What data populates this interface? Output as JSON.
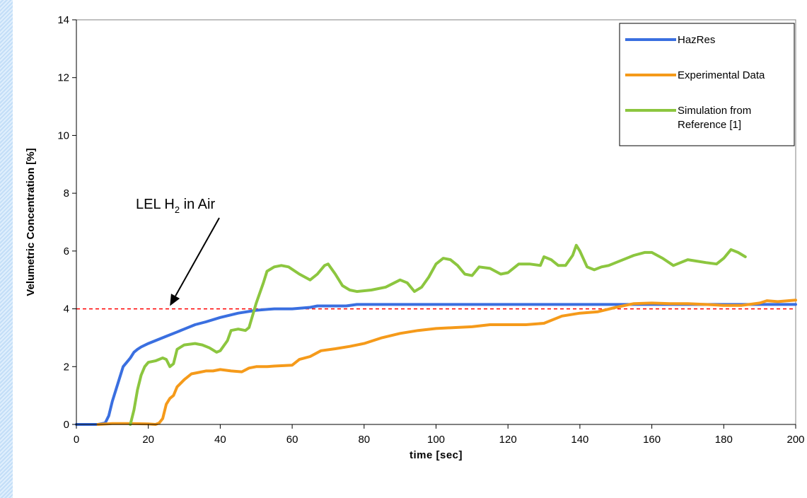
{
  "chart_data": {
    "type": "line",
    "title": "",
    "xlabel": "time [sec]",
    "ylabel": "Velumetric Concentration [%]",
    "xlim": [
      0,
      200
    ],
    "ylim": [
      0,
      14
    ],
    "xticks": [
      0,
      20,
      40,
      60,
      80,
      100,
      120,
      140,
      160,
      180,
      200
    ],
    "yticks": [
      0,
      2,
      4,
      6,
      8,
      10,
      12,
      14
    ],
    "grid": false,
    "legend_position": "top-right",
    "reference_line": {
      "y": 4,
      "color": "#ff0000",
      "style": "dashed"
    },
    "annotation": {
      "text_prefix": "LEL H",
      "subscript": "2",
      "text_suffix": " in Air",
      "arrow_to": [
        26,
        4.1
      ]
    },
    "series": [
      {
        "name": "HazRes",
        "color": "#3a6fe0",
        "x": [
          0,
          6,
          8,
          9,
          10,
          11,
          12,
          13,
          14,
          15,
          16,
          17,
          18,
          20,
          22,
          25,
          28,
          30,
          33,
          36,
          40,
          45,
          50,
          55,
          60,
          65,
          67,
          70,
          75,
          78,
          90,
          100,
          120,
          140,
          160,
          180,
          200
        ],
        "y": [
          0,
          0,
          0.05,
          0.3,
          0.8,
          1.2,
          1.6,
          2.0,
          2.15,
          2.3,
          2.5,
          2.6,
          2.68,
          2.8,
          2.9,
          3.05,
          3.2,
          3.3,
          3.45,
          3.55,
          3.7,
          3.85,
          3.95,
          4.0,
          4.0,
          4.05,
          4.1,
          4.1,
          4.1,
          4.15,
          4.15,
          4.15,
          4.15,
          4.15,
          4.15,
          4.15,
          4.15
        ]
      },
      {
        "name": "Experimental Data",
        "color": "#f59a1a",
        "x": [
          6,
          10,
          15,
          20,
          22,
          23,
          24,
          25,
          26,
          27,
          28,
          30,
          32,
          34,
          36,
          38,
          40,
          43,
          46,
          48,
          50,
          53,
          55,
          60,
          62,
          65,
          68,
          72,
          76,
          80,
          85,
          90,
          95,
          100,
          105,
          110,
          115,
          120,
          125,
          130,
          135,
          140,
          145,
          150,
          155,
          160,
          165,
          170,
          175,
          180,
          185,
          190,
          192,
          195,
          200
        ],
        "y": [
          0,
          0.03,
          0.03,
          0.02,
          0,
          0.05,
          0.2,
          0.7,
          0.9,
          1.0,
          1.3,
          1.55,
          1.75,
          1.8,
          1.85,
          1.85,
          1.9,
          1.85,
          1.82,
          1.95,
          2.0,
          2.0,
          2.02,
          2.05,
          2.25,
          2.35,
          2.55,
          2.62,
          2.7,
          2.8,
          3.0,
          3.15,
          3.25,
          3.32,
          3.35,
          3.38,
          3.45,
          3.45,
          3.45,
          3.5,
          3.75,
          3.85,
          3.9,
          4.05,
          4.18,
          4.2,
          4.18,
          4.18,
          4.15,
          4.12,
          4.12,
          4.2,
          4.28,
          4.25,
          4.3
        ]
      },
      {
        "name": "Simulation from Reference [1]",
        "color": "#8cc63f",
        "x": [
          15,
          16,
          17,
          18,
          19,
          20,
          22,
          24,
          25,
          26,
          27,
          28,
          30,
          33,
          35,
          37,
          39,
          40,
          42,
          43,
          45,
          47,
          48,
          50,
          52,
          53,
          55,
          57,
          59,
          62,
          65,
          67,
          69,
          70,
          72,
          74,
          76,
          78,
          82,
          86,
          90,
          92,
          94,
          96,
          98,
          100,
          102,
          104,
          106,
          108,
          110,
          112,
          115,
          118,
          120,
          123,
          126,
          129,
          130,
          132,
          134,
          136,
          138,
          139,
          140,
          142,
          144,
          146,
          148,
          150,
          155,
          158,
          160,
          163,
          166,
          168,
          170,
          175,
          178,
          180,
          182,
          184,
          186
        ],
        "y": [
          0,
          0.5,
          1.2,
          1.7,
          2.0,
          2.15,
          2.2,
          2.3,
          2.25,
          2.0,
          2.1,
          2.6,
          2.75,
          2.8,
          2.75,
          2.65,
          2.5,
          2.55,
          2.9,
          3.25,
          3.3,
          3.25,
          3.35,
          4.2,
          4.9,
          5.3,
          5.45,
          5.5,
          5.45,
          5.2,
          5.0,
          5.2,
          5.5,
          5.55,
          5.2,
          4.8,
          4.65,
          4.6,
          4.65,
          4.75,
          5.0,
          4.9,
          4.6,
          4.75,
          5.1,
          5.55,
          5.75,
          5.7,
          5.5,
          5.2,
          5.15,
          5.45,
          5.4,
          5.2,
          5.25,
          5.55,
          5.55,
          5.5,
          5.8,
          5.7,
          5.5,
          5.5,
          5.85,
          6.2,
          6.0,
          5.45,
          5.35,
          5.45,
          5.5,
          5.6,
          5.85,
          5.95,
          5.95,
          5.75,
          5.5,
          5.6,
          5.7,
          5.6,
          5.55,
          5.75,
          6.05,
          5.95,
          5.8
        ]
      }
    ]
  }
}
